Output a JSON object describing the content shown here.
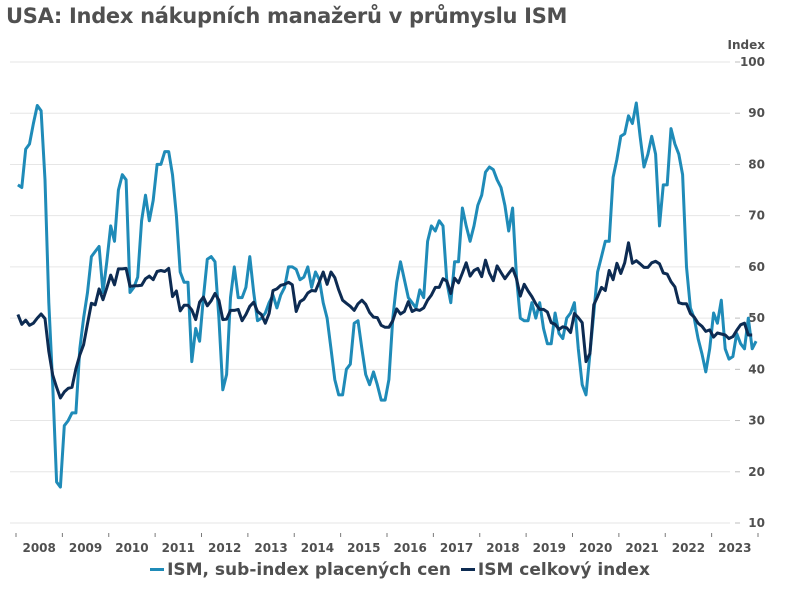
{
  "chart_data": {
    "type": "line",
    "title": "USA: Index nákupních manažerů v průmyslu ISM",
    "ylabel": "Index",
    "xlabel": "",
    "ylim": [
      10,
      100
    ],
    "yticks": [
      100,
      90,
      80,
      70,
      60,
      50,
      40,
      30,
      20,
      10
    ],
    "xlim": [
      2008,
      2024
    ],
    "x_tick_labels": [
      "2008",
      "2009",
      "2010",
      "2011",
      "2012",
      "2013",
      "2014",
      "2015",
      "2016",
      "2017",
      "2018",
      "2019",
      "2020",
      "2021",
      "2022",
      "2023"
    ],
    "grid": true,
    "legend_position": "bottom",
    "start": "2008-01",
    "frequency": "monthly",
    "series": [
      {
        "name": "ISM, sub-index placených cen",
        "color": "#1f8bb8",
        "values": [
          76,
          75.5,
          83,
          84,
          88,
          91.5,
          90.5,
          77,
          53,
          37,
          18,
          17,
          29,
          30,
          31.5,
          31.5,
          44,
          50,
          55,
          62,
          63,
          64,
          55,
          61,
          68,
          65,
          75,
          78,
          77,
          55,
          56,
          58,
          69,
          74,
          69,
          73,
          80,
          80,
          82.5,
          82.5,
          78,
          70,
          59,
          57,
          57,
          41.5,
          48,
          45.5,
          54,
          61.5,
          62,
          61,
          50,
          36,
          39,
          54,
          60,
          54,
          54,
          56,
          62,
          55,
          49.5,
          50,
          51,
          53,
          54.5,
          52,
          54.5,
          56,
          60,
          60,
          59.5,
          57.5,
          58,
          60,
          56,
          59,
          57.5,
          53,
          50,
          44,
          38,
          35,
          35,
          40,
          41,
          49,
          49.5,
          44,
          39,
          37,
          39.5,
          37,
          34,
          34,
          38,
          50,
          57,
          61,
          57.5,
          54,
          53,
          52,
          55.5,
          54,
          65,
          68,
          67,
          69,
          68,
          57,
          53,
          61,
          61,
          71.5,
          68,
          65,
          68,
          72,
          74,
          78.5,
          79.5,
          79,
          77,
          75.5,
          72,
          67,
          71.5,
          58,
          50,
          49.5,
          49.5,
          53,
          50,
          53,
          48,
          45,
          45,
          51,
          47,
          46,
          50,
          51,
          53,
          44,
          37,
          35,
          43,
          51,
          59,
          62,
          65,
          65,
          77.5,
          81,
          85.5,
          86,
          89.5,
          88,
          92,
          85.5,
          79.5,
          82,
          85.5,
          82,
          68,
          76,
          76,
          87,
          84,
          82,
          78,
          60,
          52,
          50,
          46,
          43,
          39.5,
          44,
          51,
          49,
          53.5,
          44,
          42,
          42.5,
          47,
          45,
          44,
          50,
          44,
          45.5
        ]
      },
      {
        "name": "ISM celkový index",
        "color": "#0d2b52",
        "values": [
          50.7,
          48.8,
          49.6,
          48.6,
          49,
          50,
          50.8,
          49.9,
          43.5,
          38.9,
          36.5,
          34.4,
          35.6,
          36.3,
          36.5,
          40.1,
          42.8,
          44.8,
          48.9,
          52.9,
          52.6,
          55.7,
          53.6,
          55.9,
          58.4,
          56.5,
          59.6,
          59.6,
          59.7,
          56.2,
          56.3,
          56.3,
          56.4,
          57.7,
          58.2,
          57.5,
          59.1,
          59.3,
          59.1,
          59.7,
          54.2,
          55.3,
          51.4,
          52.5,
          52.5,
          51.6,
          49.7,
          53.1,
          54.1,
          52.4,
          53.4,
          54.8,
          53.5,
          49.7,
          49.8,
          51.5,
          51.5,
          51.7,
          49.5,
          50.7,
          52.3,
          53.1,
          51.3,
          50.7,
          49.0,
          50.9,
          55.4,
          55.7,
          56.4,
          56.6,
          57.0,
          56.5,
          51.3,
          53.2,
          53.7,
          54.9,
          55.4,
          55.3,
          57.1,
          59.0,
          56.6,
          59.0,
          57.9,
          55.5,
          53.5,
          52.9,
          52.3,
          51.5,
          52.8,
          53.5,
          52.7,
          51.1,
          50.2,
          50.1,
          48.6,
          48.2,
          48.2,
          49.5,
          51.8,
          50.8,
          51.3,
          53.2,
          51.3,
          51.7,
          51.5,
          52.0,
          53.5,
          54.5,
          56.0,
          56.0,
          57.7,
          57.2,
          54.8,
          57.8,
          56.9,
          58.8,
          60.8,
          58.2,
          59.3,
          59.7,
          58.1,
          61.3,
          58.8,
          57.3,
          60.2,
          58.9,
          57.7,
          58.7,
          59.7,
          57.7,
          54.3,
          56.6,
          55.3,
          54.2,
          52.8,
          51.7,
          51.7,
          51.2,
          49.1,
          48.8,
          47.8,
          48.3,
          48.1,
          47.2,
          50.9,
          50.1,
          49.1,
          41.5,
          43.1,
          52.6,
          54.2,
          56.0,
          55.4,
          59.3,
          57.5,
          60.7,
          58.7,
          60.8,
          64.7,
          60.7,
          61.2,
          60.6,
          59.9,
          59.9,
          60.8,
          61.1,
          60.6,
          58.8,
          58.6,
          57.1,
          56.1,
          53.0,
          52.8,
          52.8,
          50.9,
          50.2,
          49.0,
          48.4,
          47.4,
          47.7,
          46.3,
          47.1,
          46.9,
          46.7,
          46.0,
          46.4,
          47.6,
          48.7,
          49.0,
          46.7,
          46.7
        ]
      }
    ]
  }
}
